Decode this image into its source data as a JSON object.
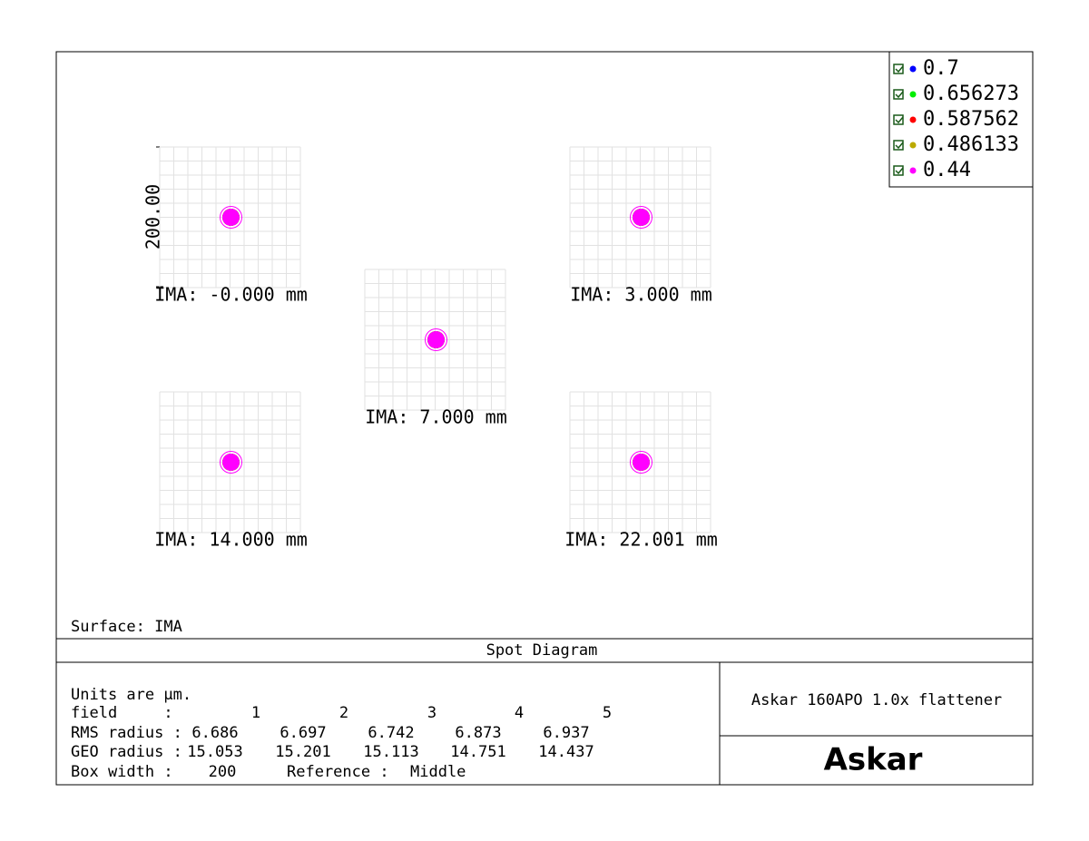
{
  "legend": {
    "entries": [
      {
        "label": "0.7",
        "color": "#0000ff"
      },
      {
        "label": "0.656273",
        "color": "#00ee00"
      },
      {
        "label": "0.587562",
        "color": "#ff0000"
      },
      {
        "label": "0.486133",
        "color": "#bbaa00"
      },
      {
        "label": "0.44",
        "color": "#ff00ff"
      }
    ]
  },
  "scale_label": "200.00",
  "panels": [
    {
      "label": "IMA: -0.000 mm"
    },
    {
      "label": "IMA: 7.000 mm"
    },
    {
      "label": "IMA: 3.000 mm"
    },
    {
      "label": "IMA: 14.000 mm"
    },
    {
      "label": "IMA: 22.001 mm"
    }
  ],
  "surface": "Surface: IMA",
  "title": "Spot Diagram",
  "info": {
    "units": "Units are µm.",
    "field_label": "field     :",
    "fields": [
      1,
      2,
      3,
      4,
      5
    ],
    "rms_label": "RMS radius :",
    "rms": [
      6.686,
      6.697,
      6.742,
      6.873,
      6.937
    ],
    "geo_label": "GEO radius :",
    "geo": [
      15.053,
      15.201,
      15.113,
      14.751,
      14.437
    ],
    "box_width_label": "Box width :",
    "box_width": 200,
    "reference_label": "Reference :",
    "reference": "Middle"
  },
  "lens": "Askar 160APO 1.0x flattener",
  "logo": "Askar"
}
